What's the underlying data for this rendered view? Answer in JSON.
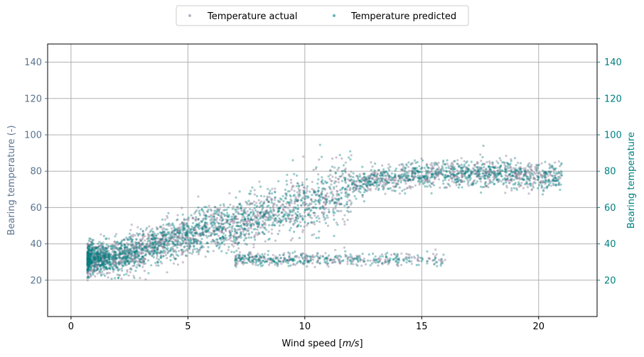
{
  "chart_data": {
    "type": "scatter",
    "xlabel": "Wind speed [m/s]",
    "xlabel_plain": "Wind speed [",
    "xlabel_italic": "m/s",
    "xlabel_close": "]",
    "ylabel_left": "Bearing temperature (-)",
    "ylabel_right": "Bearing temperature",
    "xlim": [
      -1,
      22.5
    ],
    "ylim": [
      0,
      150
    ],
    "x_ticks": [
      0,
      5,
      10,
      15,
      20
    ],
    "y_ticks": [
      20,
      40,
      60,
      80,
      100,
      120,
      140
    ],
    "grid": true,
    "legend_position": "top-center",
    "colors": {
      "actual": "#8a7d96",
      "predicted": "#008080",
      "left_axis": "#5a7490",
      "right_axis": "#008080"
    },
    "series": [
      {
        "name": "Temperature actual",
        "color": "#8a7d96",
        "trend": {
          "x": [
            0.7,
            2,
            3,
            4,
            5,
            6,
            7,
            8,
            9,
            10,
            11,
            12,
            13,
            14,
            15,
            16,
            17,
            18,
            19,
            20,
            21
          ],
          "y": [
            31,
            33,
            36,
            41,
            45,
            48,
            51,
            55,
            58,
            62,
            67,
            72,
            75,
            77,
            78,
            79,
            79,
            79,
            78,
            77,
            77
          ]
        },
        "secondary_band": {
          "x": [
            7,
            16
          ],
          "y": [
            30,
            33
          ]
        }
      },
      {
        "name": "Temperature predicted",
        "color": "#008080",
        "trend": {
          "x": [
            0.7,
            2,
            3,
            4,
            5,
            6,
            7,
            8,
            9,
            10,
            11,
            12,
            13,
            14,
            15,
            16,
            17,
            18,
            19,
            20,
            21
          ],
          "y": [
            31,
            33,
            36,
            41,
            45,
            48,
            51,
            55,
            58,
            62,
            67,
            72,
            75,
            77,
            78,
            79,
            79,
            79,
            78,
            77,
            77
          ]
        },
        "secondary_band": {
          "x": [
            7,
            16
          ],
          "y": [
            30,
            33
          ]
        }
      }
    ]
  }
}
